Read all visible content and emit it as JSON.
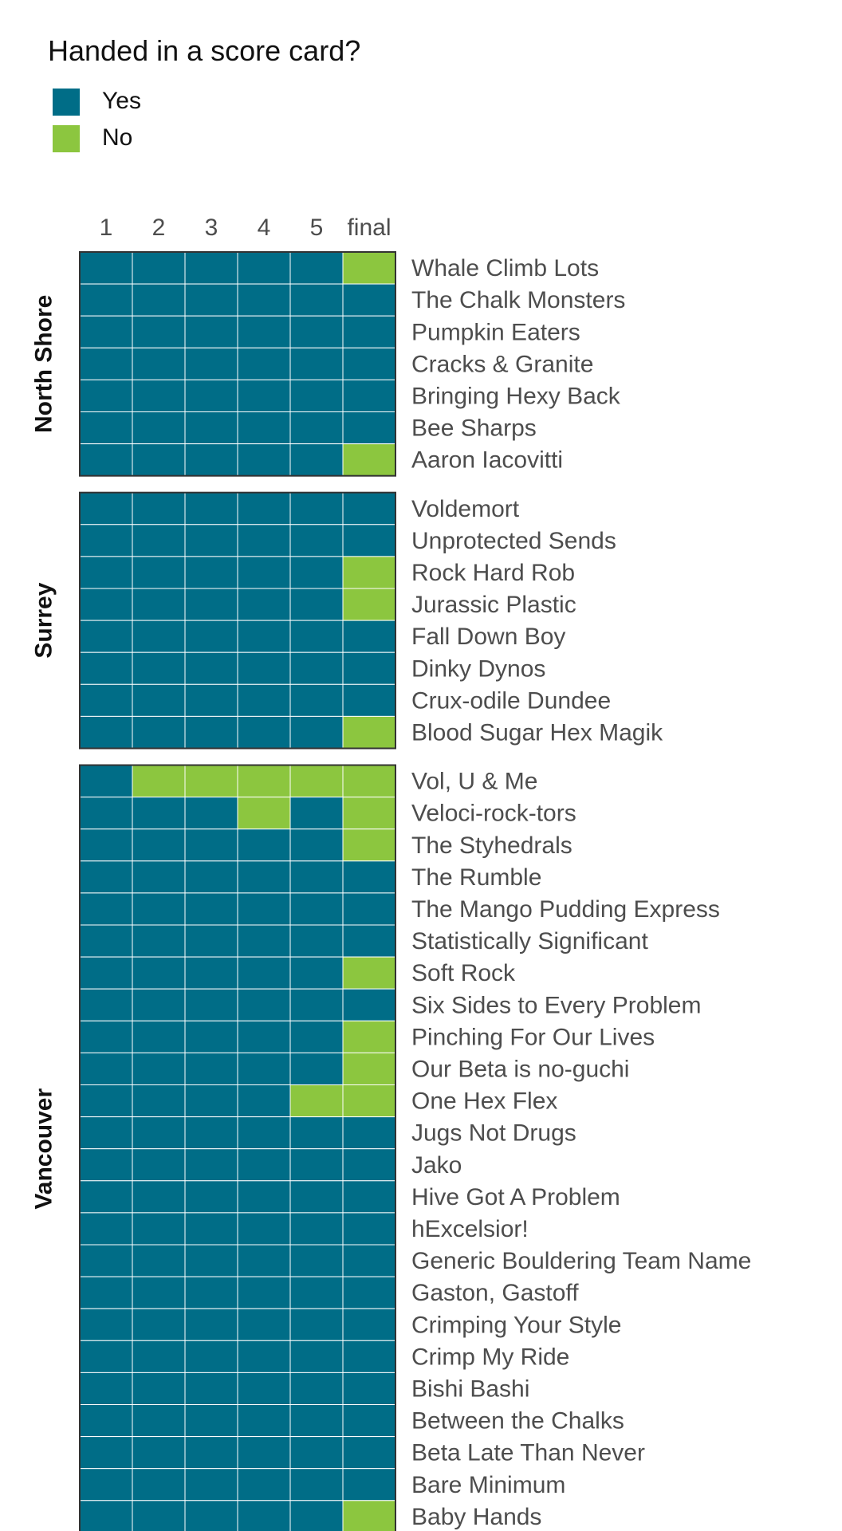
{
  "chart_data": {
    "type": "heatmap",
    "legend": {
      "title": "Handed in a score card?",
      "placement": "top-left",
      "entries": [
        {
          "label": "Yes",
          "color": "#006D87"
        },
        {
          "label": "No",
          "color": "#8CC63F"
        }
      ]
    },
    "columns": [
      "1",
      "2",
      "3",
      "4",
      "5",
      "final"
    ],
    "colors": {
      "Yes": "#006D87",
      "No": "#8CC63F",
      "grid": "#ffffff",
      "border": "#333333"
    },
    "grid": true,
    "facets": [
      {
        "name": "North Shore",
        "rows": [
          {
            "team": "Whale Climb Lots",
            "values": [
              "Yes",
              "Yes",
              "Yes",
              "Yes",
              "Yes",
              "No"
            ]
          },
          {
            "team": "The Chalk Monsters",
            "values": [
              "Yes",
              "Yes",
              "Yes",
              "Yes",
              "Yes",
              "Yes"
            ]
          },
          {
            "team": "Pumpkin Eaters",
            "values": [
              "Yes",
              "Yes",
              "Yes",
              "Yes",
              "Yes",
              "Yes"
            ]
          },
          {
            "team": "Cracks & Granite",
            "values": [
              "Yes",
              "Yes",
              "Yes",
              "Yes",
              "Yes",
              "Yes"
            ]
          },
          {
            "team": "Bringing Hexy Back",
            "values": [
              "Yes",
              "Yes",
              "Yes",
              "Yes",
              "Yes",
              "Yes"
            ]
          },
          {
            "team": "Bee Sharps",
            "values": [
              "Yes",
              "Yes",
              "Yes",
              "Yes",
              "Yes",
              "Yes"
            ]
          },
          {
            "team": "Aaron Iacovitti",
            "values": [
              "Yes",
              "Yes",
              "Yes",
              "Yes",
              "Yes",
              "No"
            ]
          }
        ]
      },
      {
        "name": "Surrey",
        "rows": [
          {
            "team": "Voldemort",
            "values": [
              "Yes",
              "Yes",
              "Yes",
              "Yes",
              "Yes",
              "Yes"
            ]
          },
          {
            "team": "Unprotected Sends",
            "values": [
              "Yes",
              "Yes",
              "Yes",
              "Yes",
              "Yes",
              "Yes"
            ]
          },
          {
            "team": "Rock Hard Rob",
            "values": [
              "Yes",
              "Yes",
              "Yes",
              "Yes",
              "Yes",
              "No"
            ]
          },
          {
            "team": "Jurassic Plastic",
            "values": [
              "Yes",
              "Yes",
              "Yes",
              "Yes",
              "Yes",
              "No"
            ]
          },
          {
            "team": "Fall Down Boy",
            "values": [
              "Yes",
              "Yes",
              "Yes",
              "Yes",
              "Yes",
              "Yes"
            ]
          },
          {
            "team": "Dinky Dynos",
            "values": [
              "Yes",
              "Yes",
              "Yes",
              "Yes",
              "Yes",
              "Yes"
            ]
          },
          {
            "team": "Crux-odile Dundee",
            "values": [
              "Yes",
              "Yes",
              "Yes",
              "Yes",
              "Yes",
              "Yes"
            ]
          },
          {
            "team": "Blood Sugar Hex Magik",
            "values": [
              "Yes",
              "Yes",
              "Yes",
              "Yes",
              "Yes",
              "No"
            ]
          }
        ]
      },
      {
        "name": "Vancouver",
        "rows": [
          {
            "team": "Vol, U & Me",
            "values": [
              "Yes",
              "No",
              "No",
              "No",
              "No",
              "No"
            ]
          },
          {
            "team": "Veloci-rock-tors",
            "values": [
              "Yes",
              "Yes",
              "Yes",
              "No",
              "Yes",
              "No"
            ]
          },
          {
            "team": "The Styhedrals",
            "values": [
              "Yes",
              "Yes",
              "Yes",
              "Yes",
              "Yes",
              "No"
            ]
          },
          {
            "team": "The Rumble",
            "values": [
              "Yes",
              "Yes",
              "Yes",
              "Yes",
              "Yes",
              "Yes"
            ]
          },
          {
            "team": "The Mango Pudding Express",
            "values": [
              "Yes",
              "Yes",
              "Yes",
              "Yes",
              "Yes",
              "Yes"
            ]
          },
          {
            "team": "Statistically Significant",
            "values": [
              "Yes",
              "Yes",
              "Yes",
              "Yes",
              "Yes",
              "Yes"
            ]
          },
          {
            "team": "Soft Rock",
            "values": [
              "Yes",
              "Yes",
              "Yes",
              "Yes",
              "Yes",
              "No"
            ]
          },
          {
            "team": "Six Sides to Every Problem",
            "values": [
              "Yes",
              "Yes",
              "Yes",
              "Yes",
              "Yes",
              "Yes"
            ]
          },
          {
            "team": "Pinching For Our Lives",
            "values": [
              "Yes",
              "Yes",
              "Yes",
              "Yes",
              "Yes",
              "No"
            ]
          },
          {
            "team": "Our Beta is no-guchi",
            "values": [
              "Yes",
              "Yes",
              "Yes",
              "Yes",
              "Yes",
              "No"
            ]
          },
          {
            "team": "One Hex Flex",
            "values": [
              "Yes",
              "Yes",
              "Yes",
              "Yes",
              "No",
              "No"
            ]
          },
          {
            "team": "Jugs Not Drugs",
            "values": [
              "Yes",
              "Yes",
              "Yes",
              "Yes",
              "Yes",
              "Yes"
            ]
          },
          {
            "team": "Jako",
            "values": [
              "Yes",
              "Yes",
              "Yes",
              "Yes",
              "Yes",
              "Yes"
            ]
          },
          {
            "team": "Hive Got A Problem",
            "values": [
              "Yes",
              "Yes",
              "Yes",
              "Yes",
              "Yes",
              "Yes"
            ]
          },
          {
            "team": "hExcelsior!",
            "values": [
              "Yes",
              "Yes",
              "Yes",
              "Yes",
              "Yes",
              "Yes"
            ]
          },
          {
            "team": "Generic Bouldering Team Name",
            "values": [
              "Yes",
              "Yes",
              "Yes",
              "Yes",
              "Yes",
              "Yes"
            ]
          },
          {
            "team": "Gaston, Gastoff",
            "values": [
              "Yes",
              "Yes",
              "Yes",
              "Yes",
              "Yes",
              "Yes"
            ]
          },
          {
            "team": "Crimping Your Style",
            "values": [
              "Yes",
              "Yes",
              "Yes",
              "Yes",
              "Yes",
              "Yes"
            ]
          },
          {
            "team": "Crimp My Ride",
            "values": [
              "Yes",
              "Yes",
              "Yes",
              "Yes",
              "Yes",
              "Yes"
            ]
          },
          {
            "team": "Bishi Bashi",
            "values": [
              "Yes",
              "Yes",
              "Yes",
              "Yes",
              "Yes",
              "Yes"
            ]
          },
          {
            "team": "Between the Chalks",
            "values": [
              "Yes",
              "Yes",
              "Yes",
              "Yes",
              "Yes",
              "Yes"
            ]
          },
          {
            "team": "Beta Late Than Never",
            "values": [
              "Yes",
              "Yes",
              "Yes",
              "Yes",
              "Yes",
              "Yes"
            ]
          },
          {
            "team": "Bare Minimum",
            "values": [
              "Yes",
              "Yes",
              "Yes",
              "Yes",
              "Yes",
              "Yes"
            ]
          },
          {
            "team": "Baby Hands",
            "values": [
              "Yes",
              "Yes",
              "Yes",
              "Yes",
              "Yes",
              "No"
            ]
          }
        ]
      }
    ]
  }
}
